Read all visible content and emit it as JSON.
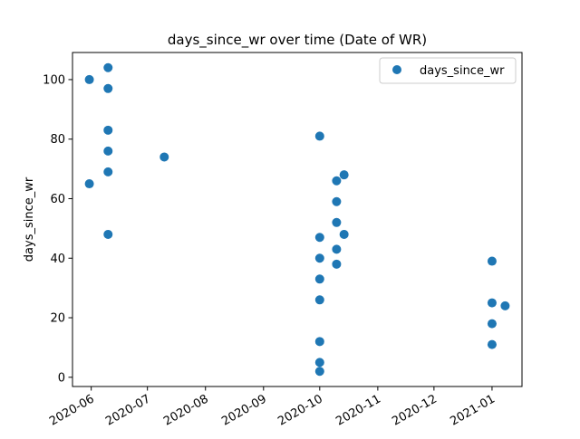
{
  "chart_data": {
    "type": "scatter",
    "title": "days_since_wr over time (Date of WR)",
    "xlabel": "",
    "ylabel": "days_since_wr",
    "x_axis_type": "date",
    "xlim": [
      "2020-05-22",
      "2021-01-17"
    ],
    "ylim": [
      -3.1,
      109.1
    ],
    "x_ticks": [
      "2020-06-01",
      "2020-07-01",
      "2020-08-01",
      "2020-09-01",
      "2020-10-01",
      "2020-11-01",
      "2020-12-01",
      "2021-01-01"
    ],
    "x_tick_labels": [
      "2020-06",
      "2020-07",
      "2020-08",
      "2020-09",
      "2020-10",
      "2020-11",
      "2020-12",
      "2021-01"
    ],
    "y_ticks": [
      0,
      20,
      40,
      60,
      80,
      100
    ],
    "y_tick_labels": [
      "0",
      "20",
      "40",
      "60",
      "80",
      "100"
    ],
    "grid": false,
    "legend": {
      "position": "top-right",
      "entries": [
        "days_since_wr"
      ]
    },
    "colors": {
      "series": "#1f77b4"
    },
    "series": [
      {
        "name": "days_since_wr",
        "points": [
          {
            "x": "2020-05-31",
            "y": 100
          },
          {
            "x": "2020-05-31",
            "y": 65
          },
          {
            "x": "2020-06-10",
            "y": 104
          },
          {
            "x": "2020-06-10",
            "y": 97
          },
          {
            "x": "2020-06-10",
            "y": 83
          },
          {
            "x": "2020-06-10",
            "y": 76
          },
          {
            "x": "2020-06-10",
            "y": 69
          },
          {
            "x": "2020-06-10",
            "y": 48
          },
          {
            "x": "2020-07-10",
            "y": 74
          },
          {
            "x": "2020-10-01",
            "y": 81
          },
          {
            "x": "2020-10-01",
            "y": 47
          },
          {
            "x": "2020-10-01",
            "y": 40
          },
          {
            "x": "2020-10-01",
            "y": 33
          },
          {
            "x": "2020-10-01",
            "y": 26
          },
          {
            "x": "2020-10-01",
            "y": 12
          },
          {
            "x": "2020-10-01",
            "y": 5
          },
          {
            "x": "2020-10-01",
            "y": 2
          },
          {
            "x": "2020-10-10",
            "y": 66
          },
          {
            "x": "2020-10-10",
            "y": 59
          },
          {
            "x": "2020-10-10",
            "y": 52
          },
          {
            "x": "2020-10-10",
            "y": 43
          },
          {
            "x": "2020-10-10",
            "y": 38
          },
          {
            "x": "2020-10-14",
            "y": 68
          },
          {
            "x": "2020-10-14",
            "y": 48
          },
          {
            "x": "2021-01-01",
            "y": 39
          },
          {
            "x": "2021-01-01",
            "y": 25
          },
          {
            "x": "2021-01-01",
            "y": 18
          },
          {
            "x": "2021-01-01",
            "y": 11
          },
          {
            "x": "2021-01-08",
            "y": 24
          }
        ]
      }
    ]
  }
}
